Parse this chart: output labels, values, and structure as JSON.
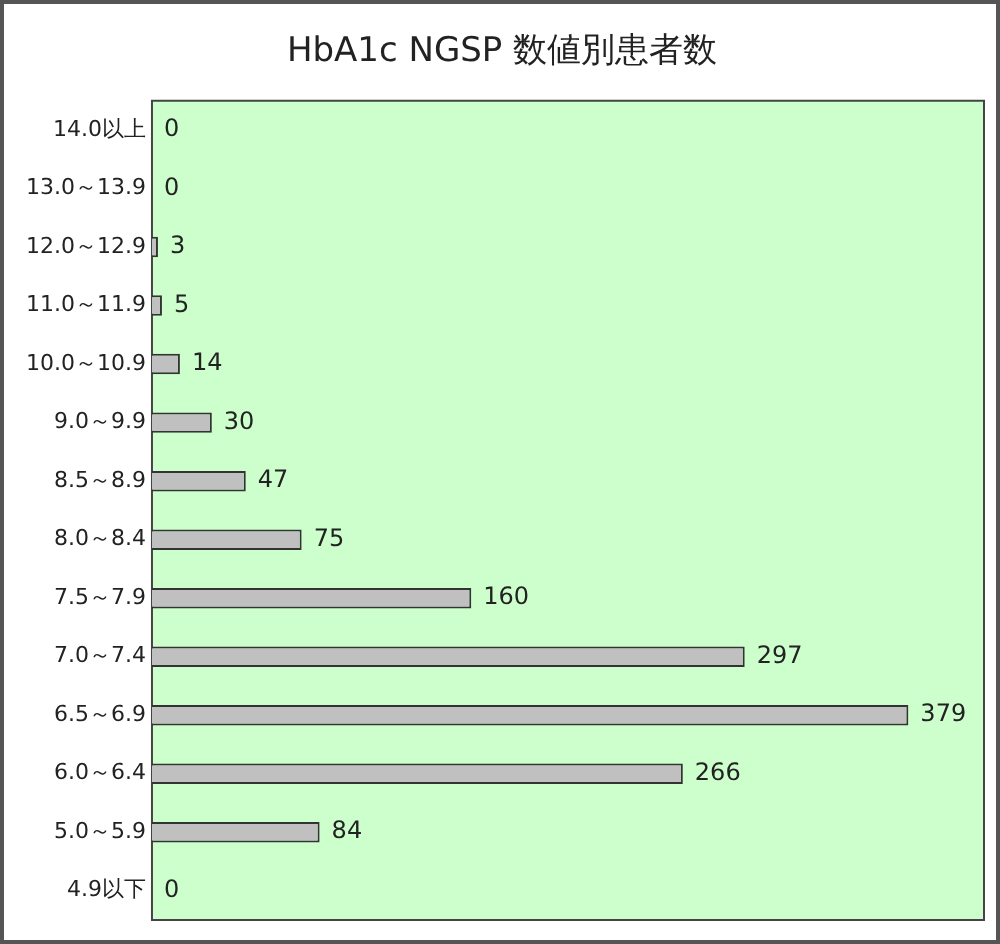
{
  "chart_data": {
    "type": "bar",
    "orientation": "horizontal",
    "title": "HbA1c NGSP 数値別患者数",
    "categories": [
      "14.0以上",
      "13.0～13.9",
      "12.0～12.9",
      "11.0～11.9",
      "10.0～10.9",
      "9.0～9.9",
      "8.5～8.9",
      "8.0～8.4",
      "7.5～7.9",
      "7.0～7.4",
      "6.5～6.9",
      "6.0～6.4",
      "5.0～5.9",
      "4.9以下"
    ],
    "values": [
      0,
      0,
      3,
      5,
      14,
      30,
      47,
      75,
      160,
      297,
      379,
      266,
      84,
      0
    ],
    "color": "#c0c0c0",
    "data_labels": true,
    "legend": false,
    "tick_labels": "y"
  }
}
